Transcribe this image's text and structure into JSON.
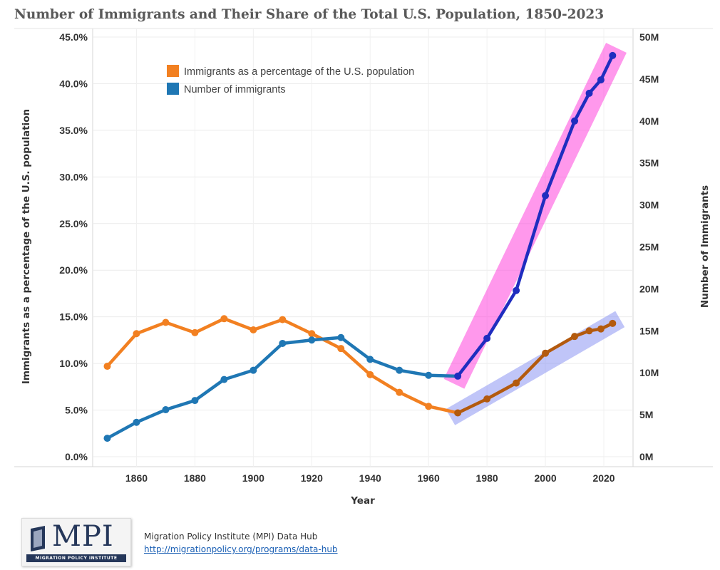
{
  "chart_data": {
    "type": "line",
    "title": "Number of Immigrants and Their Share of the Total U.S. Population, 1850-2023",
    "xlabel": "Year",
    "ylabel_left": "Immigrants as a percentage of the U.S. population",
    "ylabel_right": "Number of Immigrants",
    "x_ticks": [
      "1860",
      "1880",
      "1900",
      "1920",
      "1940",
      "1960",
      "1980",
      "2000",
      "2020"
    ],
    "y_left_ticks": [
      "0.0%",
      "5.0%",
      "10.0%",
      "15.0%",
      "20.0%",
      "25.0%",
      "30.0%",
      "35.0%",
      "40.0%",
      "45.0%"
    ],
    "y_right_ticks": [
      "0M",
      "5M",
      "10M",
      "15M",
      "20M",
      "25M",
      "30M",
      "35M",
      "40M",
      "45M",
      "50M"
    ],
    "xlim": [
      1845,
      2030
    ],
    "ylim_left": [
      0,
      45
    ],
    "ylim_right": [
      0,
      50
    ],
    "grid": true,
    "legend": "top-left",
    "x": [
      1850,
      1860,
      1870,
      1880,
      1890,
      1900,
      1910,
      1920,
      1930,
      1940,
      1950,
      1960,
      1970,
      1980,
      1990,
      2000,
      2010,
      2015,
      2019,
      2023
    ],
    "series": [
      {
        "name": "Immigrants as a percentage of the U.S. population",
        "axis": "left",
        "unit": "percent",
        "color": "#f28021",
        "values": [
          9.7,
          13.2,
          14.4,
          13.3,
          14.8,
          13.6,
          14.7,
          13.2,
          11.6,
          8.8,
          6.9,
          5.4,
          4.7,
          6.2,
          7.9,
          11.1,
          12.9,
          13.5,
          13.7,
          14.3
        ]
      },
      {
        "name": "Number of immigrants",
        "axis": "right",
        "unit": "millions",
        "color": "#1f77b4",
        "values": [
          2.2,
          4.1,
          5.6,
          6.7,
          9.2,
          10.3,
          13.5,
          13.9,
          14.2,
          11.6,
          10.3,
          9.7,
          9.6,
          14.1,
          19.8,
          31.1,
          40.0,
          43.3,
          44.9,
          47.8
        ]
      }
    ],
    "highlight_color_number": "#1f2dbf",
    "highlight_color_percent": "#b35a0e",
    "band_color_number": "#ff44dd",
    "band_color_percent": "#8c96f2"
  },
  "footer": {
    "source": "Migration Policy Institute (MPI) Data Hub",
    "link": "http://migrationpolicy.org/programs/data-hub",
    "logo_text": "MPI",
    "logo_sub": "MIGRATION POLICY INSTITUTE"
  }
}
